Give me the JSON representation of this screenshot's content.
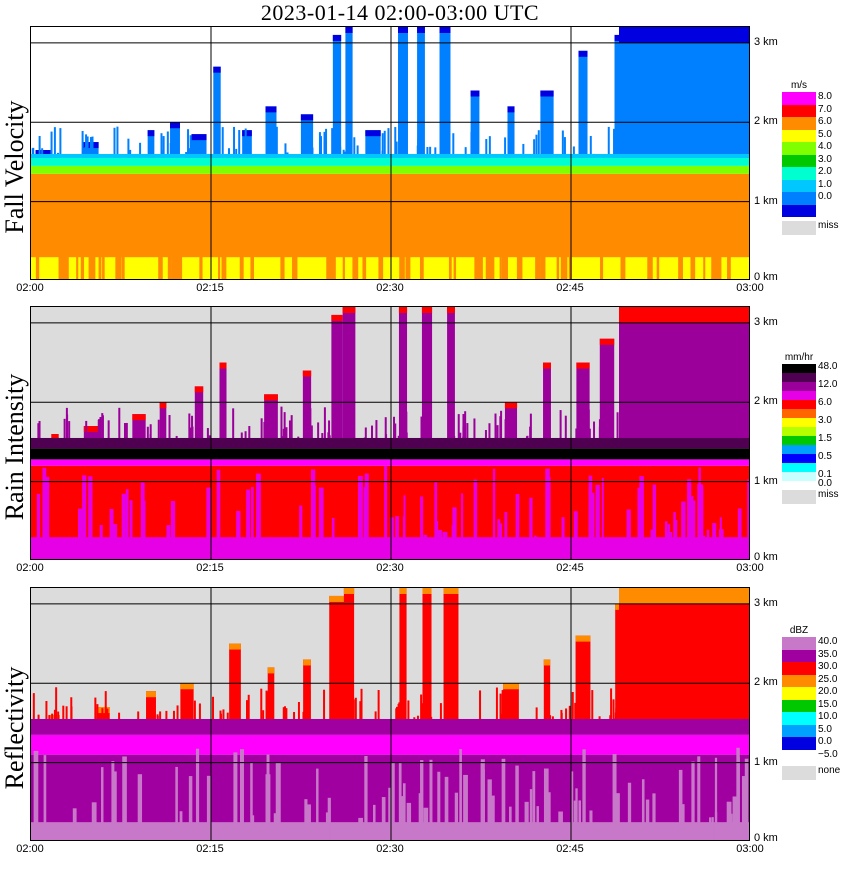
{
  "title": "2023-01-14   02:00-03:00 UTC",
  "x_ticks": [
    "02:00",
    "02:15",
    "02:30",
    "02:45",
    "03:00"
  ],
  "y_ticks": [
    "0 km",
    "1 km",
    "2 km",
    "3 km"
  ],
  "chart_data": [
    {
      "type": "heatmap",
      "title": "Fall Velocity",
      "unit": "m/s",
      "x_range": [
        "02:00",
        "03:00"
      ],
      "y_range_km": [
        0,
        3.2
      ],
      "legend": [
        {
          "label": "8.0",
          "color": "#ff00ff"
        },
        {
          "label": "7.0",
          "color": "#ff0000"
        },
        {
          "label": "6.0",
          "color": "#ff8c00"
        },
        {
          "label": "5.0",
          "color": "#ffff00"
        },
        {
          "label": "4.0",
          "color": "#80ff00"
        },
        {
          "label": "3.0",
          "color": "#00c800"
        },
        {
          "label": "2.0",
          "color": "#00ffd0"
        },
        {
          "label": "1.0",
          "color": "#00c8ff"
        },
        {
          "label": "0.0",
          "color": "#0080ff"
        },
        {
          "label": "",
          "color": "#0000e0"
        }
      ],
      "miss_label": "miss",
      "bg_color": "#ffffff",
      "layers": [
        {
          "color": "#ffff00",
          "base_km": 0.0,
          "top_km": 1.35
        },
        {
          "color": "#ff8c00",
          "base_km": 0.3,
          "top_km": 1.35
        },
        {
          "color": "#80ff00",
          "base_km": 1.35,
          "top_km": 1.45
        },
        {
          "color": "#00ffd0",
          "base_km": 1.45,
          "top_km": 1.55
        },
        {
          "color": "#00c8ff",
          "base_km": 1.55,
          "top_km": 1.6
        }
      ],
      "upper_color": "#0080ff",
      "top_color": "#0000e0",
      "spikes": [
        {
          "t": 1,
          "top_km": 1.65
        },
        {
          "t": 5,
          "top_km": 1.75
        },
        {
          "t": 10,
          "top_km": 1.9
        },
        {
          "t": 12,
          "top_km": 2.0
        },
        {
          "t": 14,
          "top_km": 1.85
        },
        {
          "t": 15.5,
          "top_km": 2.7
        },
        {
          "t": 18,
          "top_km": 1.9
        },
        {
          "t": 20,
          "top_km": 2.2
        },
        {
          "t": 23,
          "top_km": 2.1
        },
        {
          "t": 25.5,
          "top_km": 3.1
        },
        {
          "t": 26.5,
          "top_km": 3.2
        },
        {
          "t": 28.5,
          "top_km": 1.9
        },
        {
          "t": 31,
          "top_km": 3.2
        },
        {
          "t": 32.5,
          "top_km": 3.2
        },
        {
          "t": 34.5,
          "top_km": 3.2
        },
        {
          "t": 37,
          "top_km": 2.4
        },
        {
          "t": 40,
          "top_km": 2.2
        },
        {
          "t": 43,
          "top_km": 2.4
        },
        {
          "t": 46,
          "top_km": 2.9
        },
        {
          "t": 49,
          "top_km": 3.1
        },
        {
          "t": 53,
          "top_km": 3.2
        },
        {
          "t": 57,
          "top_km": 3.2
        }
      ]
    },
    {
      "type": "heatmap",
      "title": "Rain Intensity",
      "unit": "mm/hr",
      "x_range": [
        "02:00",
        "03:00"
      ],
      "y_range_km": [
        0,
        3.2
      ],
      "legend": [
        {
          "label": "48.0",
          "color": "#000000"
        },
        {
          "label": "",
          "color": "#500050"
        },
        {
          "label": "12.0",
          "color": "#9b009b"
        },
        {
          "label": "",
          "color": "#e600e6"
        },
        {
          "label": "6.0",
          "color": "#ff0000"
        },
        {
          "label": "",
          "color": "#ff6600"
        },
        {
          "label": "3.0",
          "color": "#ffff00"
        },
        {
          "label": "",
          "color": "#b4ff00"
        },
        {
          "label": "1.5",
          "color": "#00c800"
        },
        {
          "label": "",
          "color": "#00a0ff"
        },
        {
          "label": "0.5",
          "color": "#0000ff"
        },
        {
          "label": "",
          "color": "#00ffff"
        },
        {
          "label": "0.1",
          "color": "#c8ffff"
        },
        {
          "label": "0.0",
          "color": "#ffffff"
        }
      ],
      "miss_label": "miss",
      "bg_color": "#dcdcdc",
      "layers": [
        {
          "color": "#ff0000",
          "base_km": 0.0,
          "top_km": 1.2
        },
        {
          "color": "#e600e6",
          "base_km": 0.0,
          "top_km": 0.3
        },
        {
          "color": "#ff00ff",
          "base_km": 1.2,
          "top_km": 1.28
        },
        {
          "color": "#000000",
          "base_km": 1.28,
          "top_km": 1.42
        },
        {
          "color": "#500050",
          "base_km": 1.42,
          "top_km": 1.55
        }
      ],
      "upper_color": "#9b009b",
      "top_color": "#ff0000",
      "spikes": [
        {
          "t": 2,
          "top_km": 1.6
        },
        {
          "t": 5,
          "top_km": 1.7
        },
        {
          "t": 9,
          "top_km": 1.85
        },
        {
          "t": 11,
          "top_km": 2.0
        },
        {
          "t": 14,
          "top_km": 2.2
        },
        {
          "t": 16,
          "top_km": 2.5
        },
        {
          "t": 20,
          "top_km": 2.1
        },
        {
          "t": 23,
          "top_km": 2.4
        },
        {
          "t": 25.5,
          "top_km": 3.1
        },
        {
          "t": 26.5,
          "top_km": 3.2
        },
        {
          "t": 31,
          "top_km": 3.2
        },
        {
          "t": 33,
          "top_km": 3.2
        },
        {
          "t": 35,
          "top_km": 3.2
        },
        {
          "t": 40,
          "top_km": 2.0
        },
        {
          "t": 43,
          "top_km": 2.5
        },
        {
          "t": 46,
          "top_km": 2.5
        },
        {
          "t": 48,
          "top_km": 2.8
        },
        {
          "t": 50,
          "top_km": 3.0
        },
        {
          "t": 54,
          "top_km": 3.2
        },
        {
          "t": 58,
          "top_km": 3.1
        }
      ]
    },
    {
      "type": "heatmap",
      "title": "Reflectivity",
      "unit": "dBZ",
      "x_range": [
        "02:00",
        "03:00"
      ],
      "y_range_km": [
        0,
        3.2
      ],
      "legend": [
        {
          "label": "40.0",
          "color": "#c878c8"
        },
        {
          "label": "35.0",
          "color": "#a000a0"
        },
        {
          "label": "30.0",
          "color": "#ff0000"
        },
        {
          "label": "25.0",
          "color": "#ff8c00"
        },
        {
          "label": "20.0",
          "color": "#ffff00"
        },
        {
          "label": "15.0",
          "color": "#00c800"
        },
        {
          "label": "10.0",
          "color": "#00ffff"
        },
        {
          "label": "5.0",
          "color": "#00a0ff"
        },
        {
          "label": "0.0",
          "color": "#0000e0"
        },
        {
          "label": "−5.0",
          "color": "#ffffff"
        }
      ],
      "miss_label": "none",
      "bg_color": "#dcdcdc",
      "layers": [
        {
          "color": "#a000a0",
          "base_km": 0.0,
          "top_km": 1.1
        },
        {
          "color": "#c878c8",
          "base_km": 0.0,
          "top_km": 0.25
        },
        {
          "color": "#ff00ff",
          "base_km": 1.1,
          "top_km": 1.35
        },
        {
          "color": "#a000a0",
          "base_km": 1.35,
          "top_km": 1.55
        }
      ],
      "upper_color": "#ff0000",
      "top_color": "#ff8c00",
      "spikes": [
        {
          "t": 2,
          "top_km": 1.6
        },
        {
          "t": 6,
          "top_km": 1.7
        },
        {
          "t": 10,
          "top_km": 1.9
        },
        {
          "t": 13,
          "top_km": 2.0
        },
        {
          "t": 17,
          "top_km": 2.5
        },
        {
          "t": 20,
          "top_km": 2.2
        },
        {
          "t": 23,
          "top_km": 2.3
        },
        {
          "t": 25.5,
          "top_km": 3.1
        },
        {
          "t": 26.5,
          "top_km": 3.2
        },
        {
          "t": 31,
          "top_km": 3.2
        },
        {
          "t": 33,
          "top_km": 3.2
        },
        {
          "t": 35,
          "top_km": 3.2
        },
        {
          "t": 40,
          "top_km": 2.0
        },
        {
          "t": 43,
          "top_km": 2.3
        },
        {
          "t": 46,
          "top_km": 2.6
        },
        {
          "t": 49,
          "top_km": 3.0
        },
        {
          "t": 53,
          "top_km": 3.2
        },
        {
          "t": 57,
          "top_km": 3.2
        }
      ]
    }
  ]
}
